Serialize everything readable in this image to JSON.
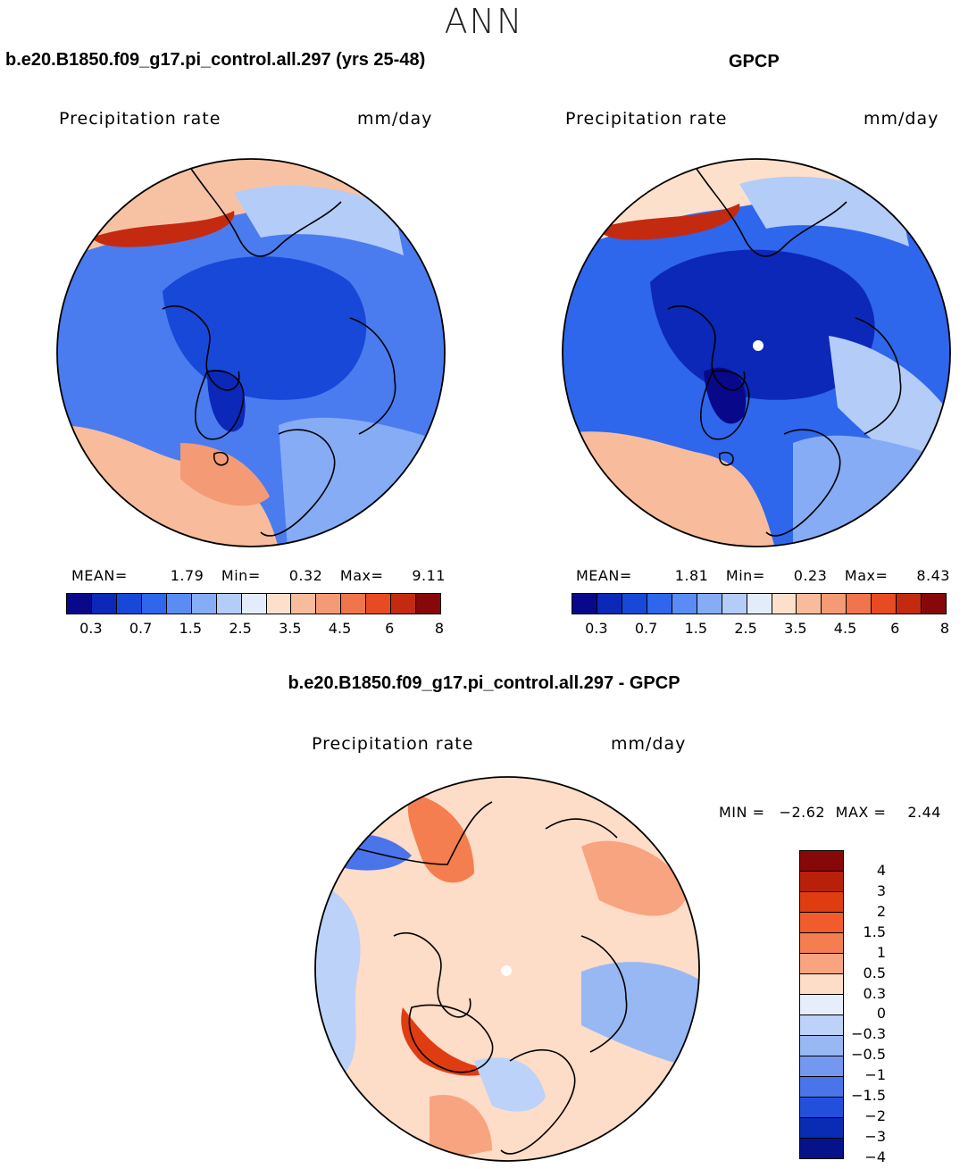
{
  "season": "ANN",
  "panels": [
    {
      "title": "b.e20.B1850.f09_g17.pi_control.all.297 (yrs 25-48)",
      "field_label": "Precipitation rate",
      "units": "mm/day",
      "stats": {
        "mean_label": "MEAN=",
        "mean": "1.79",
        "min_label": "Min=",
        "min": "0.32",
        "max_label": "Max=",
        "max": "9.11"
      },
      "colorbar_ticks": [
        "0.3",
        "0.7",
        "1.5",
        "2.5",
        "3.5",
        "4.5",
        "6",
        "8"
      ]
    },
    {
      "title": "GPCP",
      "field_label": "Precipitation rate",
      "units": "mm/day",
      "stats": {
        "mean_label": "MEAN=",
        "mean": "1.81",
        "min_label": "Min=",
        "min": "0.23",
        "max_label": "Max=",
        "max": "8.43"
      },
      "colorbar_ticks": [
        "0.3",
        "0.7",
        "1.5",
        "2.5",
        "3.5",
        "4.5",
        "6",
        "8"
      ]
    },
    {
      "title": "b.e20.B1850.f09_g17.pi_control.all.297 - GPCP",
      "field_label": "Precipitation rate",
      "units": "mm/day",
      "stats": {
        "min_label": "MIN =",
        "min": "-2.62",
        "max_label": "MAX =",
        "max": "2.44"
      },
      "colorbar_ticks": [
        "4",
        "3",
        "2",
        "1.5",
        "1",
        "0.5",
        "0.3",
        "0",
        "-0.3",
        "-0.5",
        "-1",
        "-1.5",
        "-2",
        "-3",
        "-4"
      ]
    }
  ],
  "colors": {
    "abs_scale": [
      "#08088a",
      "#0b28b8",
      "#1848d8",
      "#2e66ec",
      "#5a8cf4",
      "#86acf6",
      "#b4ccf8",
      "#e2ecfb",
      "#fce0cc",
      "#f8bc9c",
      "#f49a74",
      "#f0744c",
      "#e84a22",
      "#c42a10",
      "#860808"
    ],
    "diff_scale": [
      "#860808",
      "#b8200a",
      "#e03c12",
      "#f25c2c",
      "#f47e50",
      "#f8a480",
      "#fddcc8",
      "#e6eefb",
      "#bcd2f8",
      "#98b8f4",
      "#7498f0",
      "#4a74ea",
      "#2250dc",
      "#0a2cb4",
      "#06128a"
    ],
    "coastline": "#000000",
    "missing": "#ffffff"
  }
}
